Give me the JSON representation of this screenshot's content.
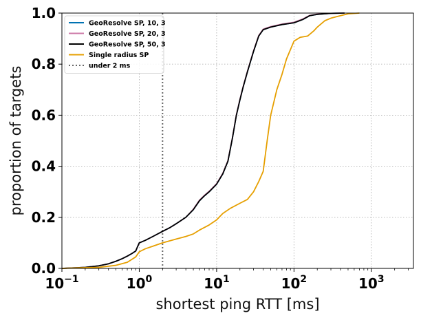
{
  "chart_data": {
    "type": "line",
    "title": "",
    "xlabel": "shortest ping RTT [ms]",
    "ylabel": "proportion of targets",
    "xscale": "log",
    "xlim": [
      0.1,
      3500
    ],
    "ylim": [
      0,
      1
    ],
    "grid": true,
    "legend_position": "top-left",
    "x_ticks": [
      {
        "value": 0.1,
        "base": "10",
        "exp": "−1"
      },
      {
        "value": 1,
        "base": "10",
        "exp": "0"
      },
      {
        "value": 10,
        "base": "10",
        "exp": "1"
      },
      {
        "value": 100,
        "base": "10",
        "exp": "2"
      },
      {
        "value": 1000,
        "base": "10",
        "exp": "3"
      }
    ],
    "y_ticks": [
      {
        "value": 0.0,
        "label": "0.0"
      },
      {
        "value": 0.2,
        "label": "0.2"
      },
      {
        "value": 0.4,
        "label": "0.4"
      },
      {
        "value": 0.6,
        "label": "0.6"
      },
      {
        "value": 0.8,
        "label": "0.8"
      },
      {
        "value": 1.0,
        "label": "1.0"
      }
    ],
    "series": [
      {
        "name": "GeoResolve SP, 10, 3",
        "color": "#0072B2",
        "dash": "solid",
        "points": [
          [
            0.1,
            0
          ],
          [
            0.2,
            0.004
          ],
          [
            0.3,
            0.01
          ],
          [
            0.4,
            0.018
          ],
          [
            0.5,
            0.028
          ],
          [
            0.6,
            0.038
          ],
          [
            0.7,
            0.048
          ],
          [
            0.8,
            0.058
          ],
          [
            0.9,
            0.068
          ],
          [
            0.95,
            0.085
          ],
          [
            1.0,
            0.1
          ],
          [
            1.2,
            0.11
          ],
          [
            1.5,
            0.125
          ],
          [
            2.0,
            0.145
          ],
          [
            2.5,
            0.16
          ],
          [
            3.0,
            0.175
          ],
          [
            4.0,
            0.2
          ],
          [
            5.0,
            0.23
          ],
          [
            6.0,
            0.265
          ],
          [
            7.0,
            0.285
          ],
          [
            8.0,
            0.3
          ],
          [
            10.0,
            0.33
          ],
          [
            12.0,
            0.37
          ],
          [
            14.0,
            0.42
          ],
          [
            16.0,
            0.51
          ],
          [
            18.0,
            0.6
          ],
          [
            20.0,
            0.66
          ],
          [
            22.0,
            0.71
          ],
          [
            25.0,
            0.77
          ],
          [
            30.0,
            0.85
          ],
          [
            35.0,
            0.91
          ],
          [
            40.0,
            0.935
          ],
          [
            50.0,
            0.945
          ],
          [
            70.0,
            0.955
          ],
          [
            100.0,
            0.962
          ],
          [
            130.0,
            0.975
          ],
          [
            160.0,
            0.99
          ],
          [
            200.0,
            0.995
          ],
          [
            300.0,
            0.999
          ],
          [
            450.0,
            1.0
          ]
        ]
      },
      {
        "name": "GeoResolve SP, 20, 3",
        "color": "#CC79A7",
        "dash": "solid",
        "points": [
          [
            0.1,
            0
          ],
          [
            0.2,
            0.004
          ],
          [
            0.3,
            0.01
          ],
          [
            0.4,
            0.018
          ],
          [
            0.5,
            0.028
          ],
          [
            0.6,
            0.038
          ],
          [
            0.7,
            0.048
          ],
          [
            0.8,
            0.058
          ],
          [
            0.9,
            0.068
          ],
          [
            0.95,
            0.085
          ],
          [
            1.0,
            0.1
          ],
          [
            1.2,
            0.11
          ],
          [
            1.5,
            0.125
          ],
          [
            2.0,
            0.145
          ],
          [
            2.5,
            0.16
          ],
          [
            3.0,
            0.175
          ],
          [
            4.0,
            0.2
          ],
          [
            5.0,
            0.232
          ],
          [
            6.0,
            0.267
          ],
          [
            7.0,
            0.287
          ],
          [
            8.0,
            0.302
          ],
          [
            10.0,
            0.332
          ],
          [
            12.0,
            0.372
          ],
          [
            14.0,
            0.422
          ],
          [
            16.0,
            0.512
          ],
          [
            18.0,
            0.602
          ],
          [
            20.0,
            0.662
          ],
          [
            22.0,
            0.712
          ],
          [
            25.0,
            0.772
          ],
          [
            30.0,
            0.852
          ],
          [
            35.0,
            0.912
          ],
          [
            40.0,
            0.937
          ],
          [
            50.0,
            0.947
          ],
          [
            70.0,
            0.957
          ],
          [
            100.0,
            0.964
          ],
          [
            130.0,
            0.977
          ],
          [
            160.0,
            0.991
          ],
          [
            200.0,
            0.996
          ],
          [
            300.0,
            0.999
          ],
          [
            450.0,
            1.0
          ]
        ]
      },
      {
        "name": "GeoResolve SP, 50, 3",
        "color": "#000000",
        "dash": "solid",
        "points": [
          [
            0.1,
            0
          ],
          [
            0.2,
            0.004
          ],
          [
            0.3,
            0.01
          ],
          [
            0.4,
            0.018
          ],
          [
            0.5,
            0.028
          ],
          [
            0.6,
            0.038
          ],
          [
            0.7,
            0.048
          ],
          [
            0.8,
            0.058
          ],
          [
            0.9,
            0.068
          ],
          [
            0.95,
            0.085
          ],
          [
            1.0,
            0.1
          ],
          [
            1.2,
            0.11
          ],
          [
            1.5,
            0.125
          ],
          [
            2.0,
            0.145
          ],
          [
            2.5,
            0.16
          ],
          [
            3.0,
            0.175
          ],
          [
            4.0,
            0.2
          ],
          [
            5.0,
            0.23
          ],
          [
            6.0,
            0.265
          ],
          [
            7.0,
            0.285
          ],
          [
            8.0,
            0.3
          ],
          [
            10.0,
            0.33
          ],
          [
            12.0,
            0.37
          ],
          [
            14.0,
            0.42
          ],
          [
            16.0,
            0.51
          ],
          [
            18.0,
            0.6
          ],
          [
            20.0,
            0.66
          ],
          [
            22.0,
            0.71
          ],
          [
            25.0,
            0.77
          ],
          [
            30.0,
            0.85
          ],
          [
            35.0,
            0.91
          ],
          [
            40.0,
            0.935
          ],
          [
            50.0,
            0.945
          ],
          [
            70.0,
            0.955
          ],
          [
            100.0,
            0.962
          ],
          [
            130.0,
            0.975
          ],
          [
            160.0,
            0.99
          ],
          [
            200.0,
            0.995
          ],
          [
            300.0,
            0.999
          ],
          [
            450.0,
            1.0
          ]
        ]
      },
      {
        "name": "Single radius SP",
        "color": "#E69F00",
        "dash": "solid",
        "points": [
          [
            0.1,
            0
          ],
          [
            0.3,
            0.004
          ],
          [
            0.5,
            0.012
          ],
          [
            0.7,
            0.024
          ],
          [
            0.8,
            0.035
          ],
          [
            0.9,
            0.045
          ],
          [
            1.0,
            0.065
          ],
          [
            1.2,
            0.077
          ],
          [
            1.5,
            0.087
          ],
          [
            2.0,
            0.1
          ],
          [
            3.0,
            0.115
          ],
          [
            4.0,
            0.125
          ],
          [
            5.0,
            0.135
          ],
          [
            6.0,
            0.15
          ],
          [
            8.0,
            0.17
          ],
          [
            10.0,
            0.19
          ],
          [
            12.0,
            0.215
          ],
          [
            15.0,
            0.235
          ],
          [
            20.0,
            0.255
          ],
          [
            25.0,
            0.27
          ],
          [
            30.0,
            0.3
          ],
          [
            35.0,
            0.34
          ],
          [
            40.0,
            0.38
          ],
          [
            45.0,
            0.5
          ],
          [
            50.0,
            0.6
          ],
          [
            60.0,
            0.7
          ],
          [
            70.0,
            0.76
          ],
          [
            80.0,
            0.82
          ],
          [
            100.0,
            0.89
          ],
          [
            120.0,
            0.905
          ],
          [
            150.0,
            0.91
          ],
          [
            180.0,
            0.93
          ],
          [
            200.0,
            0.945
          ],
          [
            250.0,
            0.97
          ],
          [
            300.0,
            0.98
          ],
          [
            400.0,
            0.99
          ],
          [
            500.0,
            0.997
          ],
          [
            700.0,
            1.0
          ]
        ]
      }
    ],
    "reference_lines": [
      {
        "name": "under 2 ms",
        "x": 2,
        "color": "#666666",
        "dash": "dotted"
      }
    ]
  }
}
